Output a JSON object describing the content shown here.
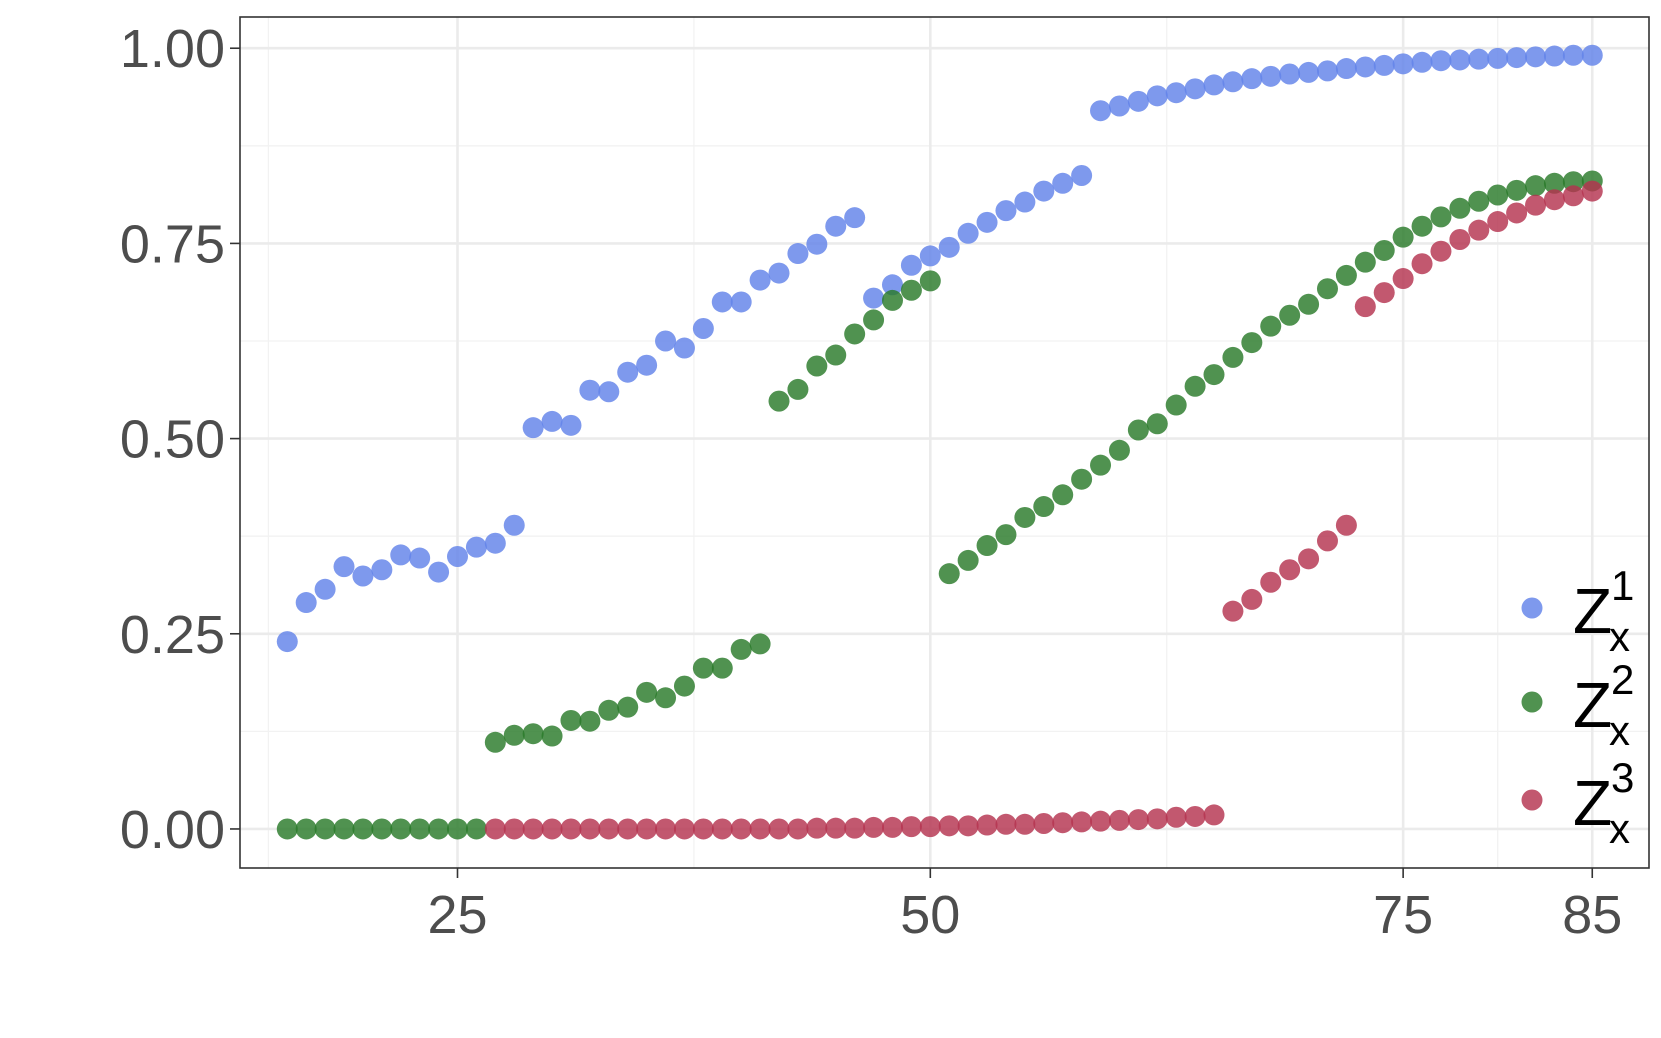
{
  "chart_data": {
    "type": "scatter",
    "title": "",
    "xlabel": "",
    "ylabel": "",
    "xlim": [
      13.5,
      88
    ],
    "ylim": [
      -0.05,
      1.04
    ],
    "x_ticks": [
      25,
      50,
      75,
      85
    ],
    "x_tick_labels": [
      "25",
      "50",
      "75",
      "85"
    ],
    "x_minor_ticks": [
      15,
      37.5,
      62.5,
      80
    ],
    "y_ticks": [
      0,
      0.25,
      0.5,
      0.75,
      1
    ],
    "y_tick_labels": [
      "0.00",
      "0.25",
      "0.50",
      "0.75",
      "1.00"
    ],
    "y_minor_ticks": [
      0.125,
      0.375,
      0.625,
      0.875
    ],
    "grid": true,
    "legend_position": "bottom-right",
    "colors": {
      "series1": "#6283E9",
      "series2": "#2A7A2A",
      "series3": "#B5334F"
    },
    "series": [
      {
        "name": "Z",
        "superscript": "1",
        "subscript": "x",
        "color": "#6283E9",
        "x": [
          16,
          17,
          18,
          19,
          20,
          21,
          22,
          23,
          24,
          25,
          26,
          27,
          28,
          29,
          30,
          31,
          32,
          33,
          34,
          35,
          36,
          37,
          38,
          39,
          40,
          41,
          42,
          43,
          44,
          45,
          46,
          47,
          48,
          49,
          50,
          51,
          52,
          53,
          54,
          55,
          56,
          57,
          58,
          59,
          60,
          61,
          62,
          63,
          64,
          65,
          66,
          67,
          68,
          69,
          70,
          71,
          72,
          73,
          74,
          75,
          76,
          77,
          78,
          79,
          80,
          81,
          82,
          83,
          84,
          85
        ],
        "y": [
          0.24,
          0.29,
          0.307,
          0.336,
          0.324,
          0.332,
          0.351,
          0.347,
          0.329,
          0.349,
          0.361,
          0.366,
          0.389,
          0.514,
          0.522,
          0.517,
          0.562,
          0.56,
          0.585,
          0.594,
          0.625,
          0.616,
          0.641,
          0.675,
          0.675,
          0.703,
          0.712,
          0.737,
          0.749,
          0.772,
          0.783,
          0.68,
          0.697,
          0.722,
          0.734,
          0.745,
          0.763,
          0.777,
          0.792,
          0.803,
          0.817,
          0.827,
          0.837,
          0.92,
          0.926,
          0.932,
          0.939,
          0.943,
          0.948,
          0.953,
          0.957,
          0.961,
          0.964,
          0.967,
          0.969,
          0.971,
          0.974,
          0.976,
          0.978,
          0.98,
          0.982,
          0.984,
          0.985,
          0.986,
          0.987,
          0.988,
          0.989,
          0.99,
          0.991,
          0.991
        ]
      },
      {
        "name": "Z",
        "superscript": "2",
        "subscript": "x",
        "color": "#2A7A2A",
        "x": [
          16,
          17,
          18,
          19,
          20,
          21,
          22,
          23,
          24,
          25,
          26,
          27,
          28,
          29,
          30,
          31,
          32,
          33,
          34,
          35,
          36,
          37,
          38,
          39,
          40,
          41,
          42,
          43,
          44,
          45,
          46,
          47,
          48,
          49,
          50,
          51,
          52,
          53,
          54,
          55,
          56,
          57,
          58,
          59,
          60,
          61,
          62,
          63,
          64,
          65,
          66,
          67,
          68,
          69,
          70,
          71,
          72,
          73,
          74,
          75,
          76,
          77,
          78,
          79,
          80,
          81,
          82,
          83,
          84,
          85
        ],
        "y": [
          0,
          0,
          0,
          0,
          0,
          0,
          0,
          0,
          0,
          0,
          0,
          0.111,
          0.12,
          0.122,
          0.119,
          0.139,
          0.138,
          0.152,
          0.156,
          0.175,
          0.168,
          0.183,
          0.206,
          0.206,
          0.23,
          0.237,
          0.548,
          0.563,
          0.593,
          0.607,
          0.634,
          0.652,
          0.677,
          0.69,
          0.702,
          0.327,
          0.344,
          0.363,
          0.377,
          0.399,
          0.413,
          0.428,
          0.448,
          0.466,
          0.485,
          0.511,
          0.519,
          0.543,
          0.567,
          0.582,
          0.604,
          0.623,
          0.644,
          0.658,
          0.672,
          0.692,
          0.709,
          0.726,
          0.741,
          0.758,
          0.772,
          0.784,
          0.795,
          0.804,
          0.812,
          0.818,
          0.824,
          0.827,
          0.829,
          0.83
        ]
      },
      {
        "name": "Z",
        "superscript": "3",
        "subscript": "x",
        "color": "#B5334F",
        "x": [
          27,
          28,
          29,
          30,
          31,
          32,
          33,
          34,
          35,
          36,
          37,
          38,
          39,
          40,
          41,
          42,
          43,
          44,
          45,
          46,
          47,
          48,
          49,
          50,
          51,
          52,
          53,
          54,
          55,
          56,
          57,
          58,
          59,
          60,
          61,
          62,
          63,
          64,
          65,
          66,
          67,
          68,
          69,
          70,
          71,
          72,
          73,
          74,
          75,
          76,
          77,
          78,
          79,
          80,
          81,
          82,
          83,
          84,
          85
        ],
        "y": [
          0,
          0,
          0,
          0,
          0,
          0,
          0,
          0,
          0,
          0,
          0,
          0,
          0,
          0,
          0,
          0,
          0,
          0.001,
          0.001,
          0.001,
          0.002,
          0.002,
          0.003,
          0.003,
          0.004,
          0.004,
          0.005,
          0.006,
          0.006,
          0.007,
          0.008,
          0.009,
          0.01,
          0.011,
          0.012,
          0.013,
          0.015,
          0.016,
          0.018,
          0.279,
          0.294,
          0.316,
          0.332,
          0.346,
          0.369,
          0.389,
          0.669,
          0.687,
          0.705,
          0.724,
          0.74,
          0.755,
          0.767,
          0.778,
          0.789,
          0.799,
          0.806,
          0.811,
          0.817
        ]
      }
    ]
  }
}
